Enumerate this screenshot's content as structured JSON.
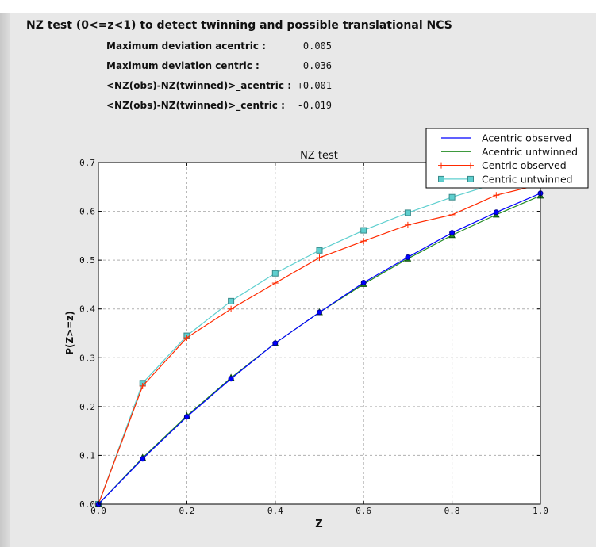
{
  "heading": "NZ test (0<=z<1) to detect twinning and possible translational NCS",
  "stats": [
    {
      "label": "Maximum deviation acentric :",
      "value": "0.005"
    },
    {
      "label": "Maximum deviation centric :",
      "value": "0.036"
    },
    {
      "label": "<NZ(obs)-NZ(twinned)>_acentric :",
      "value": "+0.001"
    },
    {
      "label": "<NZ(obs)-NZ(twinned)>_centric :",
      "value": "-0.019"
    }
  ],
  "chart_data": {
    "type": "line",
    "title": "NZ test",
    "xlabel": "Z",
    "ylabel": "P(Z>=z)",
    "xlim": [
      0.0,
      1.0
    ],
    "ylim": [
      0.0,
      0.7
    ],
    "xticks": [
      "0.0",
      "0.2",
      "0.4",
      "0.6",
      "0.8",
      "1.0"
    ],
    "yticks": [
      "0.0",
      "0.1",
      "0.2",
      "0.3",
      "0.4",
      "0.5",
      "0.6",
      "0.7"
    ],
    "grid": true,
    "legend_position": "top-right",
    "x": [
      0.0,
      0.1,
      0.2,
      0.3,
      0.4,
      0.5,
      0.6,
      0.7,
      0.8,
      0.9,
      1.0
    ],
    "series": [
      {
        "name": "Acentric observed",
        "color": "#0000ff",
        "marker": "circle",
        "values": [
          0.0,
          0.093,
          0.179,
          0.257,
          0.33,
          0.393,
          0.454,
          0.506,
          0.556,
          0.598,
          0.637
        ]
      },
      {
        "name": "Acentric untwinned",
        "color": "#228b22",
        "marker": "triangle",
        "values": [
          0.0,
          0.095,
          0.181,
          0.259,
          0.33,
          0.393,
          0.451,
          0.503,
          0.551,
          0.593,
          0.632
        ]
      },
      {
        "name": "Centric observed",
        "color": "#ff2a00",
        "marker": "plus",
        "values": [
          0.0,
          0.242,
          0.341,
          0.4,
          0.453,
          0.505,
          0.539,
          0.572,
          0.593,
          0.633,
          0.655
        ]
      },
      {
        "name": "Centric untwinned",
        "color": "#5ecfcf",
        "marker": "square",
        "values": [
          0.0,
          0.248,
          0.345,
          0.416,
          0.473,
          0.52,
          0.561,
          0.597,
          0.629,
          0.657,
          0.683
        ]
      }
    ]
  }
}
